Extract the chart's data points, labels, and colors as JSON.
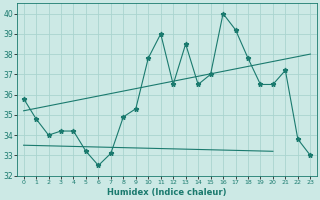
{
  "xlabel": "Humidex (Indice chaleur)",
  "ylabel": "",
  "xlim": [
    -0.5,
    23.5
  ],
  "ylim": [
    32,
    40.5
  ],
  "yticks": [
    32,
    33,
    34,
    35,
    36,
    37,
    38,
    39,
    40
  ],
  "xticks": [
    0,
    1,
    2,
    3,
    4,
    5,
    6,
    7,
    8,
    9,
    10,
    11,
    12,
    13,
    14,
    15,
    16,
    17,
    18,
    19,
    20,
    21,
    22,
    23
  ],
  "background_color": "#cce9e5",
  "grid_color": "#aad4cf",
  "line_color": "#1a7a6e",
  "data_x": [
    0,
    1,
    2,
    3,
    4,
    5,
    6,
    7,
    8,
    9,
    10,
    11,
    12,
    13,
    14,
    15,
    16,
    17,
    18,
    19,
    20,
    21,
    22,
    23
  ],
  "data_y": [
    35.8,
    34.8,
    34.0,
    34.2,
    34.2,
    33.2,
    32.5,
    33.1,
    34.9,
    35.3,
    37.8,
    39.0,
    36.5,
    38.5,
    36.5,
    37.0,
    40.0,
    39.2,
    37.8,
    36.5,
    36.5,
    37.2,
    33.8,
    33.0
  ],
  "trend1_x": [
    0,
    23
  ],
  "trend1_y": [
    35.2,
    38.0
  ],
  "trend2_x": [
    0,
    20
  ],
  "trend2_y": [
    33.5,
    33.2
  ]
}
